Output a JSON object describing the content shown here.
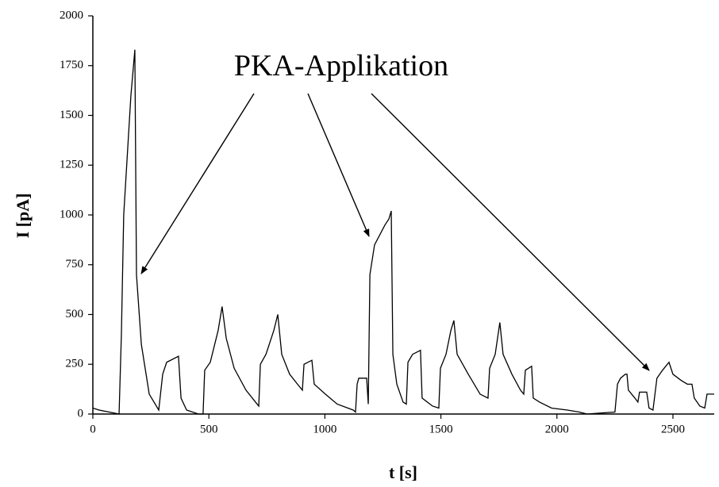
{
  "chart_data": {
    "type": "line",
    "x_label": "t [s]",
    "y_label": "I [pA]",
    "annotation": "PKA-Applikation",
    "color": "#000000",
    "xlim": [
      0,
      2678
    ],
    "xticks": [
      0,
      500,
      1000,
      1500,
      2000,
      2500
    ],
    "ylim": [
      0,
      2000
    ],
    "yticks": [
      0,
      250,
      500,
      750,
      1000,
      1250,
      1500,
      1750,
      2000
    ],
    "x": [
      0,
      27,
      113,
      123,
      133,
      164,
      181,
      188,
      209,
      243,
      284,
      301,
      318,
      369,
      380,
      404,
      455,
      475,
      482,
      506,
      540,
      557,
      575,
      609,
      660,
      701,
      715,
      722,
      746,
      780,
      797,
      814,
      848,
      882,
      903,
      910,
      944,
      954,
      1002,
      1053,
      1122,
      1132,
      1139,
      1146,
      1180,
      1187,
      1194,
      1214,
      1259,
      1276,
      1286,
      1293,
      1310,
      1337,
      1351,
      1358,
      1378,
      1412,
      1419,
      1464,
      1491,
      1498,
      1522,
      1543,
      1556,
      1570,
      1618,
      1669,
      1703,
      1710,
      1734,
      1754,
      1768,
      1806,
      1843,
      1857,
      1864,
      1891,
      1898,
      1925,
      1977,
      2045,
      2096,
      2130,
      2250,
      2261,
      2274,
      2295,
      2302,
      2308,
      2336,
      2349,
      2356,
      2387,
      2397,
      2414,
      2431,
      2455,
      2483,
      2500,
      2534,
      2562,
      2582,
      2592,
      2616,
      2637,
      2647,
      2678
    ],
    "values": [
      30,
      20,
      0,
      400,
      1000,
      1600,
      1830,
      700,
      350,
      100,
      20,
      200,
      260,
      290,
      80,
      20,
      0,
      0,
      220,
      260,
      420,
      540,
      380,
      230,
      120,
      60,
      40,
      250,
      300,
      420,
      500,
      300,
      200,
      150,
      120,
      250,
      270,
      150,
      100,
      50,
      20,
      10,
      150,
      180,
      180,
      50,
      700,
      850,
      950,
      980,
      1020,
      300,
      150,
      60,
      50,
      260,
      300,
      320,
      80,
      40,
      30,
      230,
      300,
      420,
      470,
      300,
      200,
      100,
      80,
      230,
      300,
      460,
      300,
      200,
      120,
      100,
      220,
      240,
      80,
      60,
      30,
      20,
      10,
      0,
      10,
      150,
      180,
      200,
      200,
      120,
      80,
      60,
      110,
      110,
      30,
      20,
      180,
      220,
      260,
      200,
      170,
      150,
      150,
      80,
      40,
      30,
      100,
      100
    ]
  }
}
